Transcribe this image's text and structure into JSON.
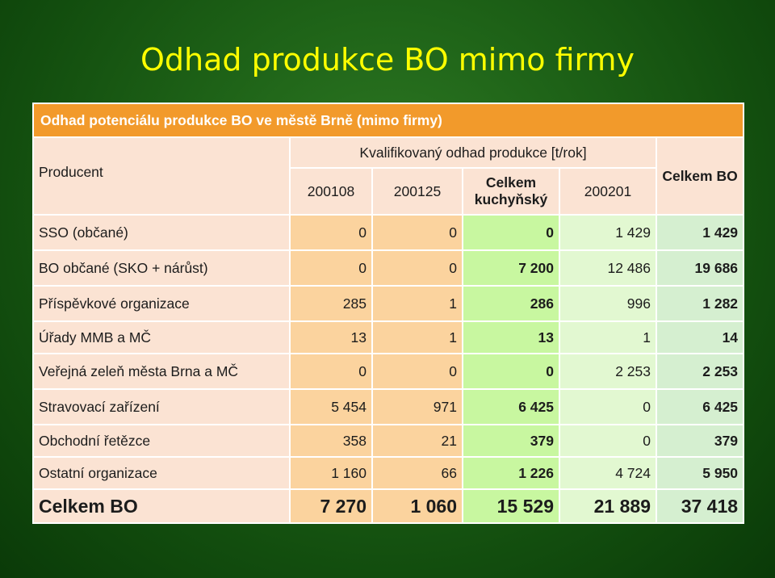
{
  "title": "Odhad produkce BO mimo firmy",
  "table": {
    "caption": "Odhad potenciálu produkce BO ve městě Brně (mimo firmy)",
    "producer_header": "Producent",
    "span_header": "Kvalifikovaný odhad produkce [t/rok]",
    "columns": [
      "200108",
      "200125",
      "Celkem kuchyňský",
      "200201",
      "Celkem BO"
    ],
    "rows": [
      {
        "label": "SSO (občané)",
        "values": [
          "0",
          "0",
          "0",
          "1 429",
          "1 429"
        ]
      },
      {
        "label": "BO občané (SKO + nárůst)",
        "values": [
          "0",
          "0",
          "7 200",
          "12 486",
          "19 686"
        ]
      },
      {
        "label": "Příspěvkové organizace",
        "values": [
          "285",
          "1",
          "286",
          "996",
          "1 282"
        ]
      },
      {
        "label": "Úřady MMB a MČ",
        "values": [
          "13",
          "1",
          "13",
          "1",
          "14"
        ]
      },
      {
        "label": "Veřejná zeleň města Brna a MČ",
        "values": [
          "0",
          "0",
          "0",
          "2 253",
          "2 253"
        ]
      },
      {
        "label": "Stravovací zařízení",
        "values": [
          "5 454",
          "971",
          "6 425",
          "0",
          "6 425"
        ]
      },
      {
        "label": "Obchodní řetězce",
        "values": [
          "358",
          "21",
          "379",
          "0",
          "379"
        ]
      },
      {
        "label": "Ostatní organizace",
        "values": [
          "1 160",
          "66",
          "1 226",
          "4 724",
          "5 950"
        ]
      }
    ],
    "total": {
      "label": "Celkem BO",
      "values": [
        "7 270",
        "1 060",
        "15 529",
        "21 889",
        "37 418"
      ]
    }
  },
  "colors": {
    "title": "#ffff00",
    "caption_bg": "#f29a2b",
    "header_bg": "#fbe3d3",
    "col_orange": "#fbd39e",
    "col_green": "#c8f7a0",
    "col_lightgreen": "#e2f8d1"
  }
}
